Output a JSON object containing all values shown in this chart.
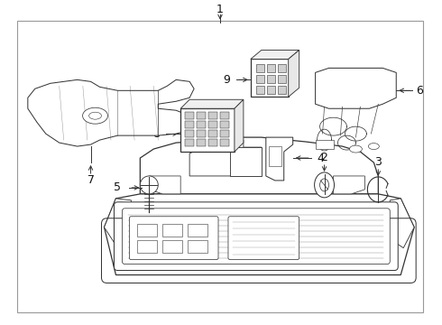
{
  "background_color": "#ffffff",
  "line_color": "#333333",
  "border_color": "#aaaaaa",
  "label_color": "#111111",
  "fig_width": 4.9,
  "fig_height": 3.6,
  "dpi": 100
}
